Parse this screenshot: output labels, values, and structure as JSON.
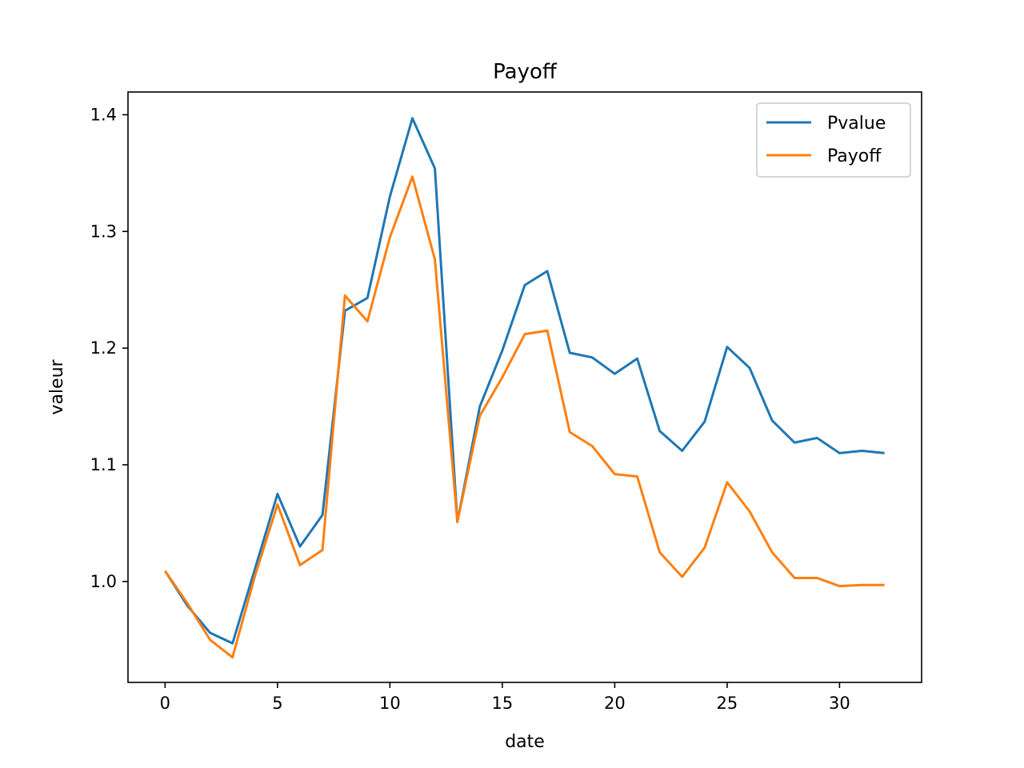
{
  "chart_data": {
    "type": "line",
    "title": "Payoff",
    "xlabel": "date",
    "ylabel": "valeur",
    "xlim": [
      -1.65,
      33.65
    ],
    "ylim": [
      0.9135,
      1.4195
    ],
    "xticks": [
      0,
      5,
      10,
      15,
      20,
      25,
      30
    ],
    "yticks": [
      1.0,
      1.1,
      1.2,
      1.3,
      1.4
    ],
    "grid": false,
    "legend_position": "top-right",
    "x": [
      0,
      1,
      2,
      3,
      4,
      5,
      6,
      7,
      8,
      9,
      10,
      11,
      12,
      13,
      14,
      15,
      16,
      17,
      18,
      19,
      20,
      21,
      22,
      23,
      24,
      25,
      26,
      27,
      28,
      29,
      30,
      31,
      32
    ],
    "series": [
      {
        "name": "Pvalue",
        "color": "#1f77b4",
        "values": [
          1.009,
          0.979,
          0.956,
          0.947,
          1.011,
          1.075,
          1.03,
          1.057,
          1.232,
          1.243,
          1.33,
          1.397,
          1.354,
          1.051,
          1.15,
          1.198,
          1.254,
          1.266,
          1.196,
          1.192,
          1.178,
          1.191,
          1.129,
          1.112,
          1.137,
          1.201,
          1.183,
          1.138,
          1.119,
          1.123,
          1.11,
          1.112,
          1.11
        ]
      },
      {
        "name": "Payoff",
        "color": "#ff7f0e",
        "values": [
          1.009,
          0.981,
          0.95,
          0.935,
          1.005,
          1.066,
          1.014,
          1.027,
          1.245,
          1.223,
          1.295,
          1.347,
          1.276,
          1.051,
          1.142,
          1.175,
          1.212,
          1.215,
          1.128,
          1.116,
          1.092,
          1.09,
          1.025,
          1.004,
          1.029,
          1.085,
          1.06,
          1.025,
          1.003,
          1.003,
          0.996,
          0.997,
          0.997
        ]
      }
    ]
  }
}
